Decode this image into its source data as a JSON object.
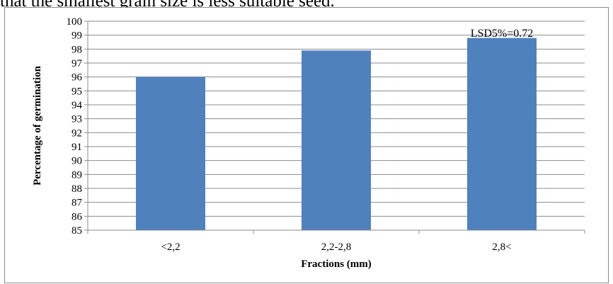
{
  "caption": "that the smallest grain size is less suitable seed.",
  "chart_data": {
    "type": "bar",
    "categories": [
      "<2,2",
      "2,2-2,8",
      "2,8<"
    ],
    "values": [
      96.0,
      97.9,
      98.8
    ],
    "xlabel": "Fractions (mm)",
    "ylabel": "Percentage of germination",
    "ylim": [
      85,
      100
    ],
    "yticks": [
      85,
      86,
      87,
      88,
      89,
      90,
      91,
      92,
      93,
      94,
      95,
      96,
      97,
      98,
      99,
      100
    ],
    "annotation": "LSD5%=0.72",
    "bar_color": "#4f81bd",
    "grid": true,
    "legend": "none"
  }
}
